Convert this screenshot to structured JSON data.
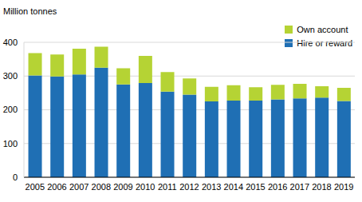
{
  "chart_data": {
    "type": "bar",
    "stacked": true,
    "y_label": "Million tonnes",
    "categories": [
      "2005",
      "2006",
      "2007",
      "2008",
      "2009",
      "2010",
      "2011",
      "2012",
      "2013",
      "2014",
      "2015",
      "2016",
      "2017",
      "2018",
      "2019"
    ],
    "series": [
      {
        "name": "Hire or reward",
        "color": "#1f6fb4",
        "values": [
          302,
          299,
          305,
          325,
          275,
          279,
          254,
          245,
          225,
          227,
          227,
          231,
          234,
          236,
          226
        ]
      },
      {
        "name": "Own account",
        "color": "#b5d334",
        "values": [
          66,
          65,
          76,
          62,
          48,
          81,
          58,
          48,
          43,
          46,
          40,
          43,
          43,
          34,
          39
        ]
      }
    ],
    "ylim": [
      0,
      400
    ],
    "yticks": [
      0,
      100,
      200,
      300,
      400
    ],
    "grid": true,
    "legend": "upper right"
  }
}
